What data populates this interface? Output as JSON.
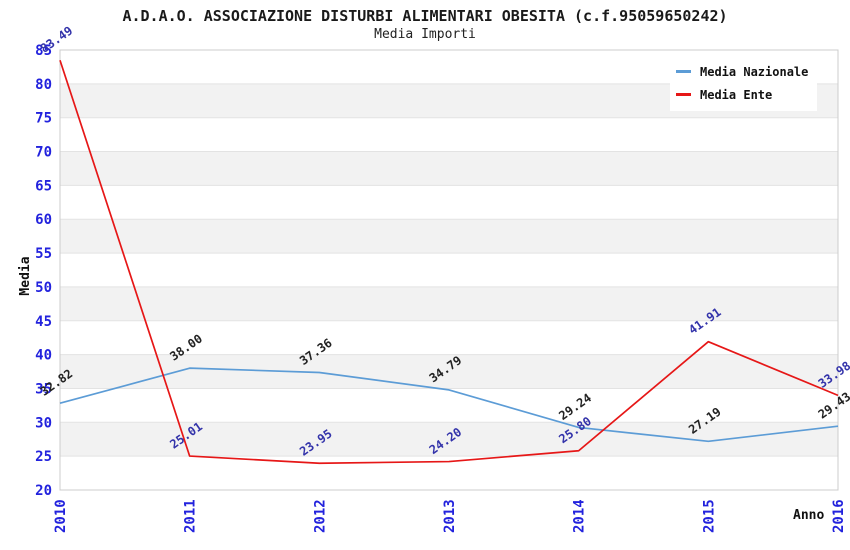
{
  "header": {
    "title": "A.D.A.O. ASSOCIAZIONE DISTURBI ALIMENTARI OBESITA (c.f.95059650242)",
    "subtitle": "Media Importi"
  },
  "chart_data": {
    "type": "line",
    "x_categories": [
      "2010",
      "2011",
      "2012",
      "2013",
      "2014",
      "2015",
      "2016"
    ],
    "xlabel": "Anno",
    "ylabel": "Media",
    "ylim": [
      20,
      85
    ],
    "ytick_step": 5,
    "grid": "horizontal-bands-alternating",
    "legend_position": "top-right",
    "series": [
      {
        "name": "Media Nazionale",
        "color": "#5C9CD6",
        "label_color": "#222222",
        "values": [
          32.82,
          38.0,
          37.36,
          34.79,
          29.24,
          27.19,
          29.43
        ]
      },
      {
        "name": "Media Ente",
        "color": "#E61717",
        "label_color": "#3333AA",
        "values": [
          83.49,
          25.01,
          23.95,
          24.2,
          25.8,
          41.91,
          33.98
        ]
      }
    ],
    "axis_tick_color": "#2222DD",
    "band_color": "#F2F2F2",
    "gridline_color": "#E3E3E3",
    "border_color": "#CCCCCC"
  }
}
